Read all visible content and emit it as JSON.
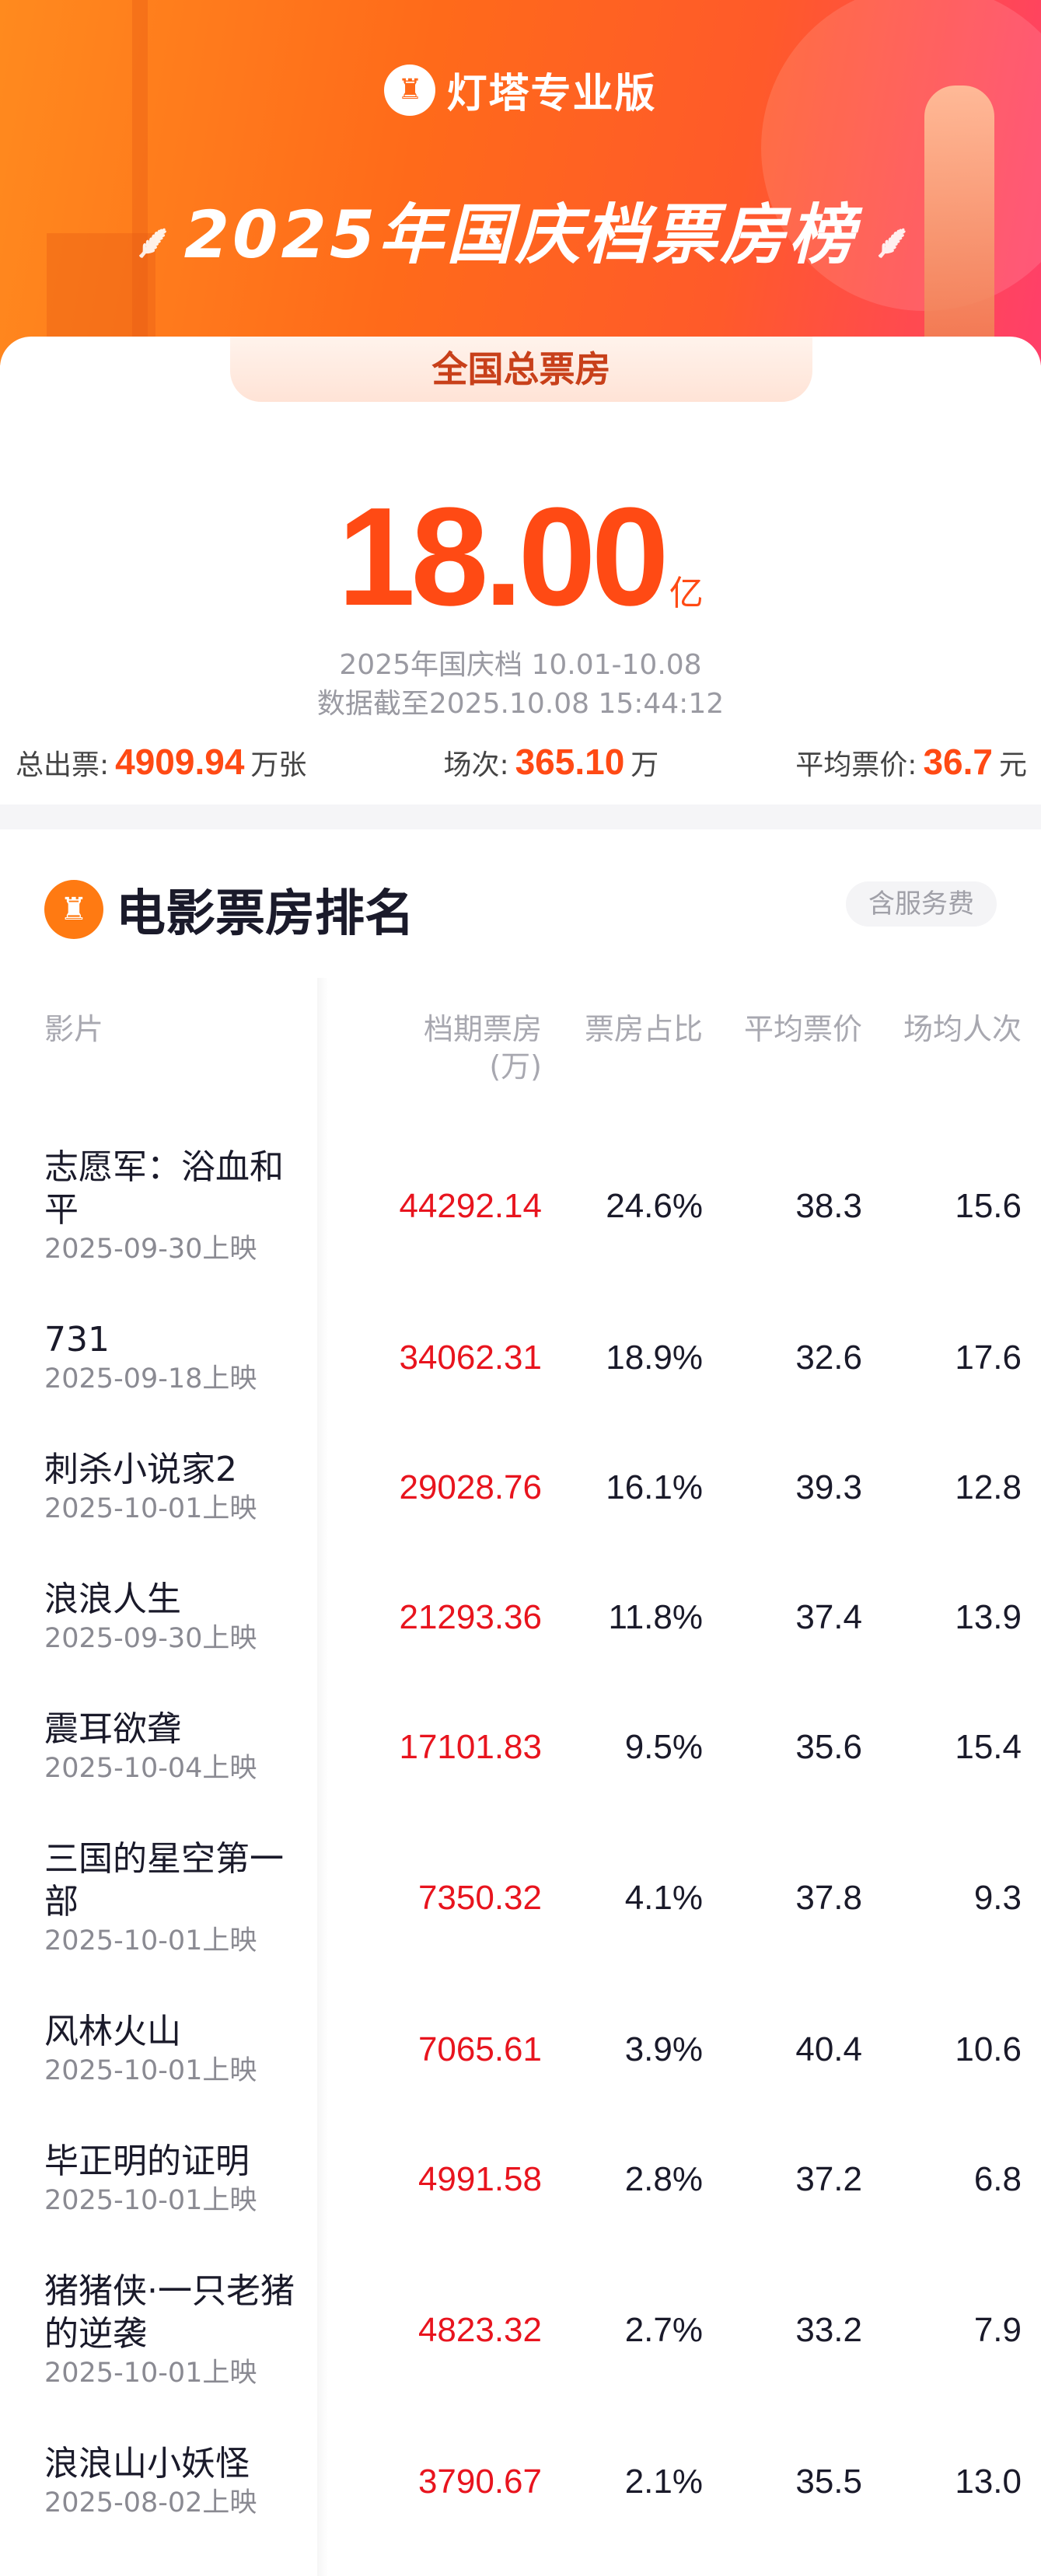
{
  "header": {
    "brand": "灯塔专业版",
    "title": "2025年国庆档票房榜"
  },
  "summary": {
    "tab_label": "全国总票房",
    "total_value": "18.00",
    "total_unit": "亿",
    "period": "2025年国庆档 10.01-10.08",
    "updated": "数据截至2025.10.08 15:44:12",
    "tickets_label": "总出票:",
    "tickets_value": "4909.94",
    "tickets_unit": "万张",
    "shows_label": "场次:",
    "shows_value": "365.10",
    "shows_unit": "万",
    "avg_price_label": "平均票价:",
    "avg_price_value": "36.7",
    "avg_price_unit": "元"
  },
  "ranking": {
    "title": "电影票房排名",
    "badge": "含服务费",
    "columns": [
      "影片",
      "档期票房\n(万)",
      "票房占比",
      "平均票价",
      "场均人次"
    ],
    "rows": [
      {
        "title": "志愿军：浴血和平",
        "date": "2025-09-30上映",
        "box": "44292.14",
        "share": "24.6%",
        "price": "38.3",
        "per": "15.6"
      },
      {
        "title": "731",
        "date": "2025-09-18上映",
        "box": "34062.31",
        "share": "18.9%",
        "price": "32.6",
        "per": "17.6"
      },
      {
        "title": "刺杀小说家2",
        "date": "2025-10-01上映",
        "box": "29028.76",
        "share": "16.1%",
        "price": "39.3",
        "per": "12.8"
      },
      {
        "title": "浪浪人生",
        "date": "2025-09-30上映",
        "box": "21293.36",
        "share": "11.8%",
        "price": "37.4",
        "per": "13.9"
      },
      {
        "title": "震耳欲聋",
        "date": "2025-10-04上映",
        "box": "17101.83",
        "share": "9.5%",
        "price": "35.6",
        "per": "15.4"
      },
      {
        "title": "三国的星空第一部",
        "date": "2025-10-01上映",
        "box": "7350.32",
        "share": "4.1%",
        "price": "37.8",
        "per": "9.3"
      },
      {
        "title": "风林火山",
        "date": "2025-10-01上映",
        "box": "7065.61",
        "share": "3.9%",
        "price": "40.4",
        "per": "10.6"
      },
      {
        "title": "毕正明的证明",
        "date": "2025-10-01上映",
        "box": "4991.58",
        "share": "2.8%",
        "price": "37.2",
        "per": "6.8"
      },
      {
        "title": "猪猪侠·一只老猪的逆袭",
        "date": "2025-10-01上映",
        "box": "4823.32",
        "share": "2.7%",
        "price": "33.2",
        "per": "7.9"
      },
      {
        "title": "浪浪山小妖怪",
        "date": "2025-08-02上映",
        "box": "3790.67",
        "share": "2.1%",
        "price": "35.5",
        "per": "13.0"
      }
    ]
  },
  "colors": {
    "accent": "#ff4a14",
    "box_office": "#e8141e"
  },
  "icons": {
    "brand": "lighthouse-logo-icon",
    "section": "lighthouse-icon"
  }
}
